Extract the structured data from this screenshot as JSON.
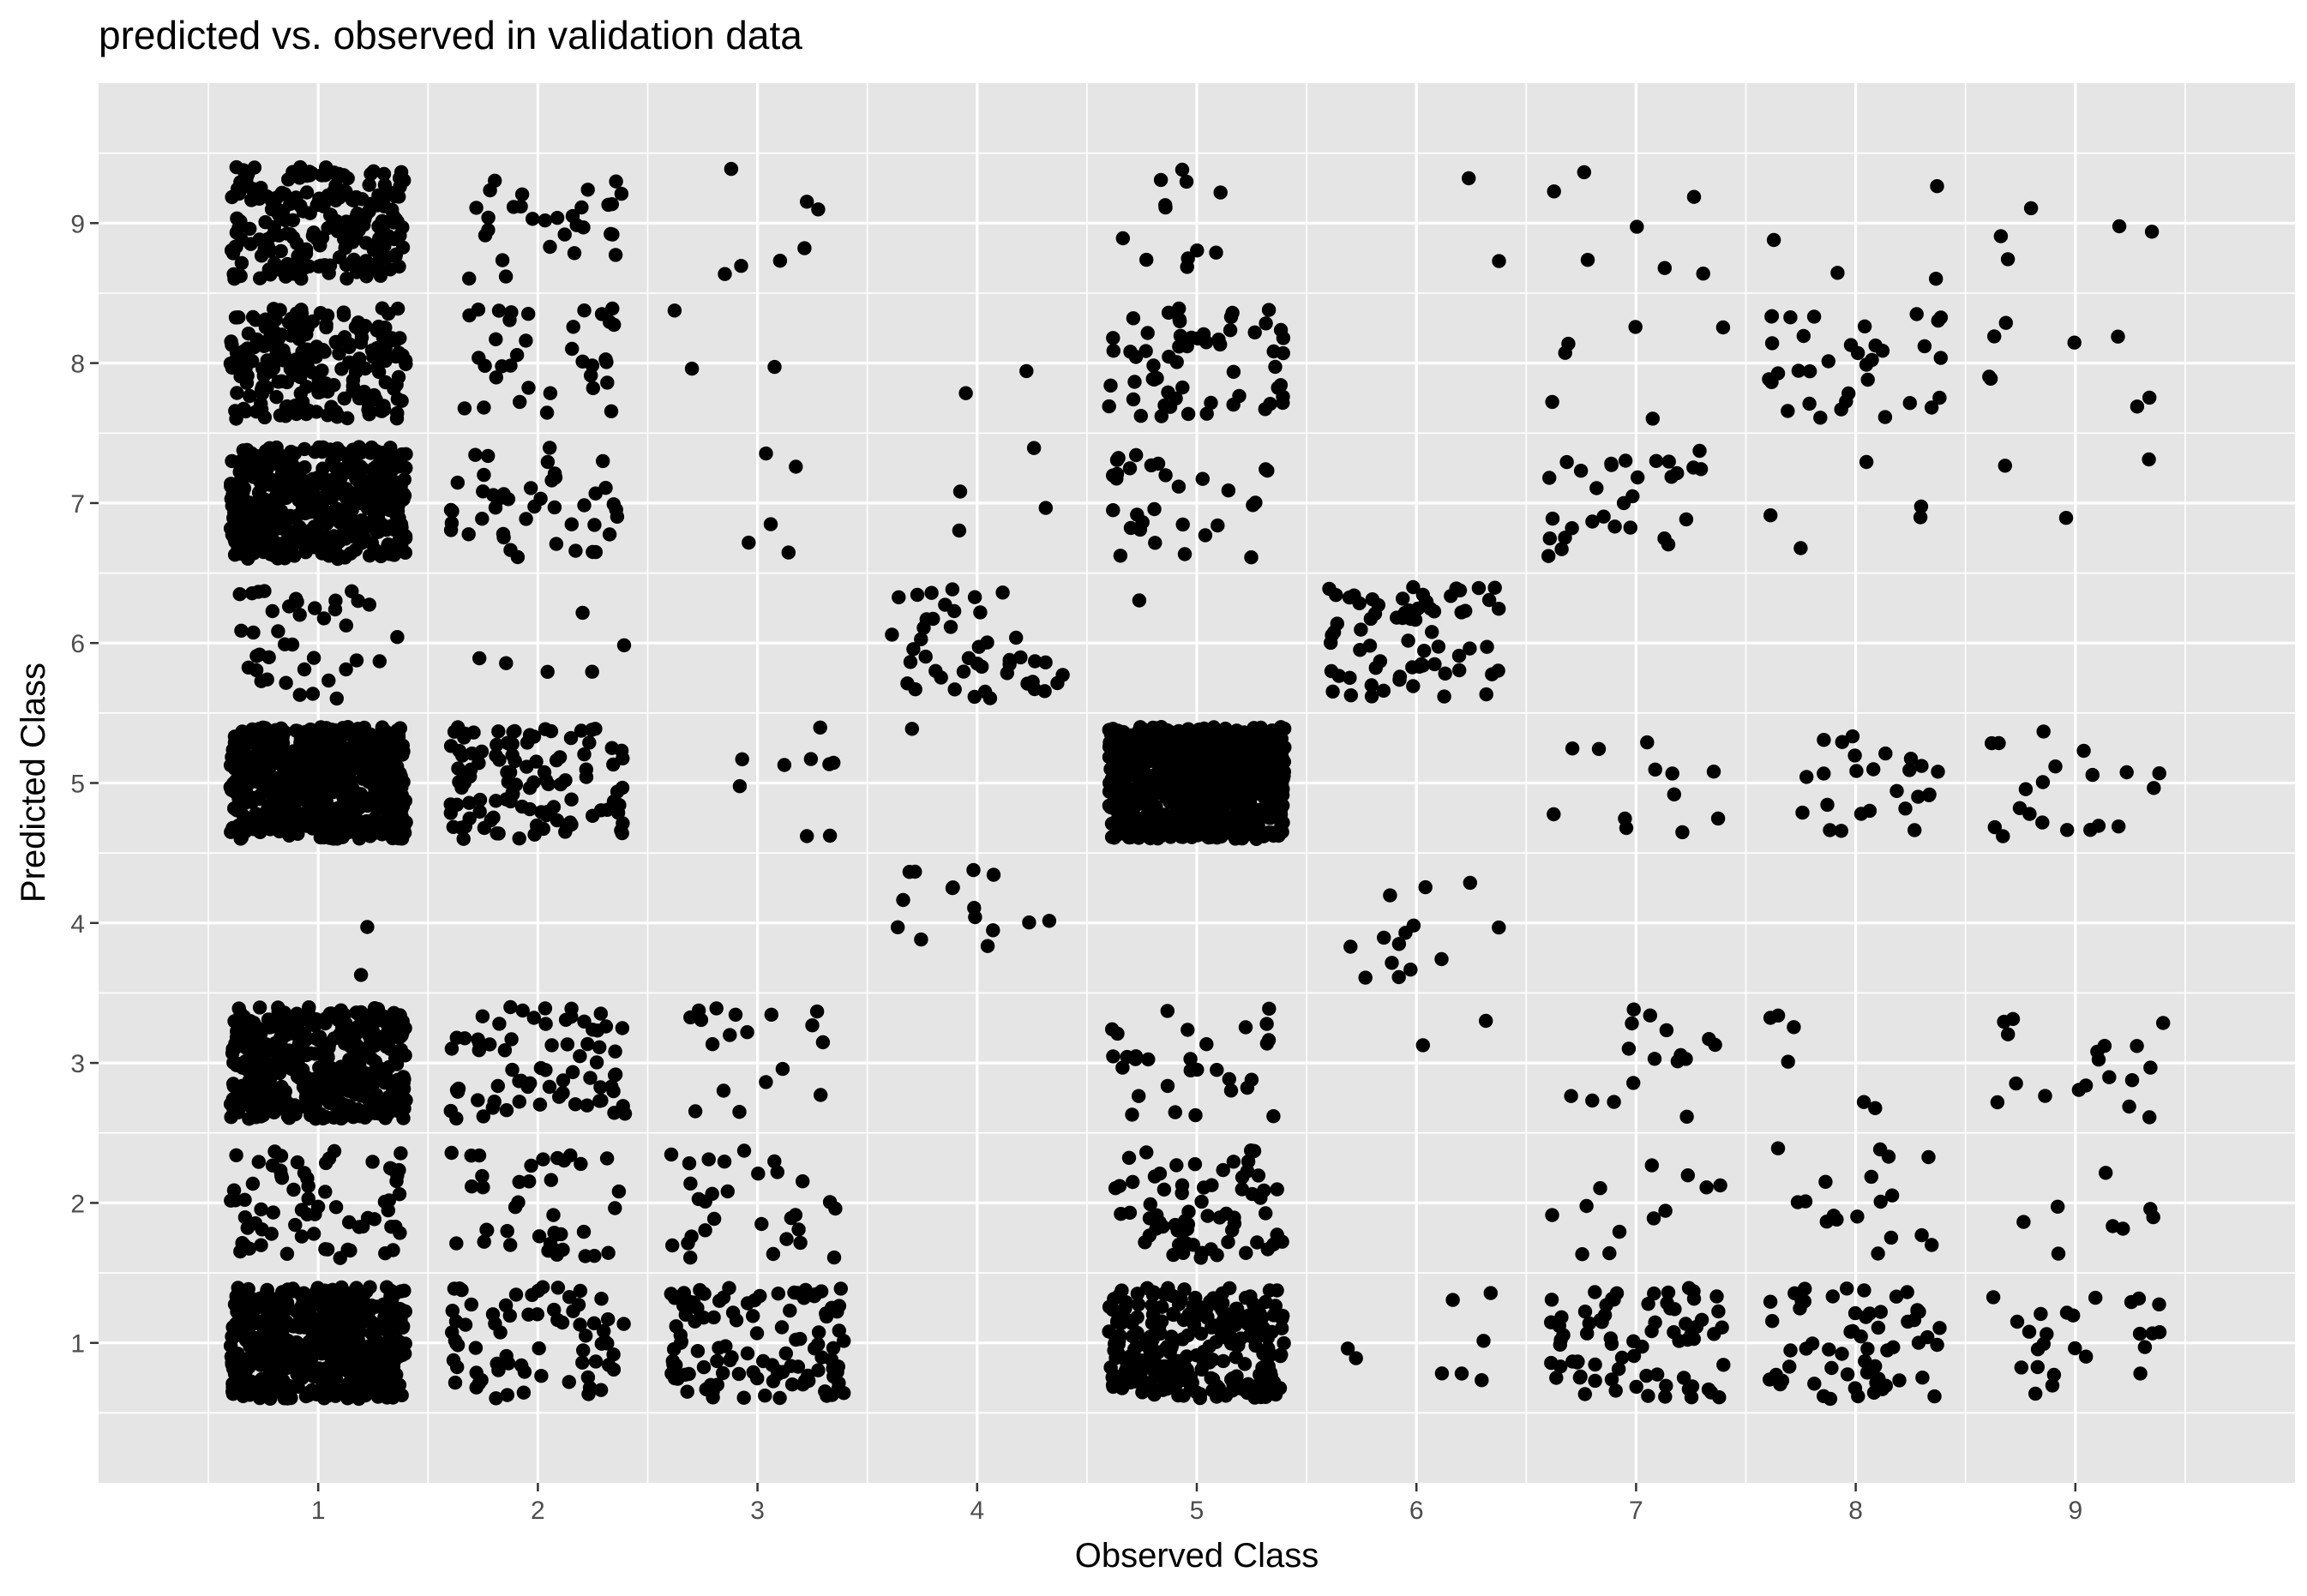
{
  "chart_data": {
    "type": "scatter",
    "title": "predicted vs. observed in validation data",
    "xlabel": "Observed Class",
    "ylabel": "Predicted Class",
    "x_ticks": [
      "1",
      "2",
      "3",
      "4",
      "5",
      "6",
      "7",
      "8",
      "9"
    ],
    "y_ticks": [
      "1",
      "2",
      "3",
      "4",
      "5",
      "6",
      "7",
      "8",
      "9"
    ],
    "xlim": [
      0,
      10
    ],
    "ylim": [
      0,
      10
    ],
    "grid": true,
    "jitter": 0.4,
    "point_color": "#000000",
    "panel_color": "#e5e5e5",
    "counts_note_jittered_points_by_observed_predicted": true,
    "series": [
      {
        "observed": 1,
        "predicted_counts": {
          "1": 520,
          "2": 70,
          "3": 420,
          "4": 2,
          "5": 560,
          "6": 40,
          "7": 480,
          "8": 200,
          "9": 220
        }
      },
      {
        "observed": 2,
        "predicted_counts": {
          "1": 70,
          "2": 40,
          "3": 70,
          "5": 110,
          "6": 6,
          "7": 45,
          "8": 35,
          "9": 30
        }
      },
      {
        "observed": 3,
        "predicted_counts": {
          "1": 110,
          "2": 30,
          "3": 18,
          "5": 9,
          "7": 5,
          "8": 3,
          "9": 7
        }
      },
      {
        "observed": 4,
        "predicted_counts": {
          "4": 15,
          "5": 1,
          "6": 45,
          "7": 4,
          "8": 2
        }
      },
      {
        "observed": 5,
        "predicted_counts": {
          "1": 260,
          "2": 70,
          "3": 30,
          "5": 700,
          "6": 1,
          "7": 30,
          "8": 60,
          "9": 12
        }
      },
      {
        "observed": 6,
        "predicted_counts": {
          "1": 8,
          "3": 2,
          "4": 14,
          "6": 70,
          "9": 2
        }
      },
      {
        "observed": 7,
        "predicted_counts": {
          "1": 75,
          "2": 12,
          "3": 16,
          "5": 12,
          "7": 30,
          "8": 6,
          "9": 7
        }
      },
      {
        "observed": 8,
        "predicted_counts": {
          "1": 60,
          "2": 18,
          "3": 6,
          "5": 25,
          "7": 5,
          "8": 35,
          "9": 4
        }
      },
      {
        "observed": 9,
        "predicted_counts": {
          "1": 25,
          "2": 8,
          "3": 18,
          "5": 20,
          "7": 3,
          "8": 8,
          "9": 5
        }
      }
    ]
  }
}
